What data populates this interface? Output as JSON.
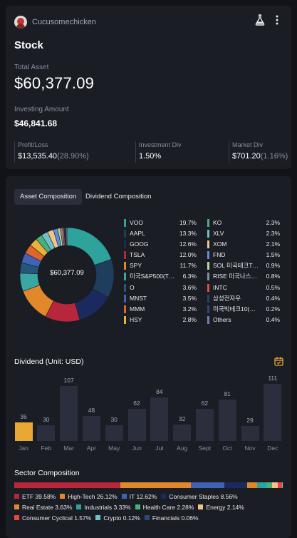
{
  "header": {
    "username": "Cucusomechicken",
    "title": "Stock"
  },
  "summary": {
    "total_asset_label": "Total Asset",
    "total_asset": "$60,377.09",
    "investing_label": "Investing Amount",
    "investing": "$46,841.68",
    "profit_label": "Profit/Loss",
    "profit_value": "$13,535.40",
    "profit_pct": "(28.90%)",
    "inv_div_label": "Investment Div",
    "inv_div_value": "1.50%",
    "mkt_div_label": "Market Div",
    "mkt_div_value": "$701.20",
    "mkt_div_pct": "(1.16%)"
  },
  "tabs": {
    "asset": "Asset Composition",
    "dividend": "Dividend Composition"
  },
  "donut": {
    "center": "$60,377.09"
  },
  "holdings_left": [
    {
      "name": "VOO",
      "pct": "19.7%",
      "color": "#2ea39b",
      "value": 19.7
    },
    {
      "name": "AAPL",
      "pct": "13.3%",
      "color": "#1f3d5c",
      "value": 13.3
    },
    {
      "name": "GOOG",
      "pct": "12.6%",
      "color": "#1b2a5e",
      "value": 12.6
    },
    {
      "name": "TSLA",
      "pct": "12.0%",
      "color": "#b7263b",
      "value": 12.0
    },
    {
      "name": "SPY",
      "pct": "11.7%",
      "color": "#e0882a",
      "value": 11.7
    },
    {
      "name": "미국S&P500(T…",
      "pct": "6.3%",
      "color": "#3aa6a3",
      "value": 6.3
    },
    {
      "name": "O",
      "pct": "3.6%",
      "color": "#26567a",
      "value": 3.6
    },
    {
      "name": "MNST",
      "pct": "3.5%",
      "color": "#3e63b5",
      "value": 3.5
    },
    {
      "name": "MMM",
      "pct": "3.2%",
      "color": "#e0642e",
      "value": 3.2
    },
    {
      "name": "HSY",
      "pct": "2.8%",
      "color": "#e9b33b",
      "value": 2.8
    }
  ],
  "holdings_right": [
    {
      "name": "KO",
      "pct": "2.3%",
      "color": "#48b07a",
      "value": 2.3
    },
    {
      "name": "XLV",
      "pct": "2.3%",
      "color": "#6fc1c9",
      "value": 2.3
    },
    {
      "name": "XOM",
      "pct": "2.1%",
      "color": "#f2c38b",
      "value": 2.1
    },
    {
      "name": "FND",
      "pct": "1.5%",
      "color": "#5b8fd6",
      "value": 1.5
    },
    {
      "name": "SOL 미국테크T…",
      "pct": "0.9%",
      "color": "#b9d99b",
      "value": 0.9
    },
    {
      "name": "RISE 미국나스…",
      "pct": "0.8%",
      "color": "#8a8d99",
      "value": 0.8
    },
    {
      "name": "INTC",
      "pct": "0.5%",
      "color": "#e34b3c",
      "value": 0.5
    },
    {
      "name": "삼성전자우",
      "pct": "0.4%",
      "color": "#2b3f63",
      "value": 0.4
    },
    {
      "name": "미국빅테크10(…",
      "pct": "0.2%",
      "color": "#2c4a73",
      "value": 0.2
    },
    {
      "name": "Others",
      "pct": "0.4%",
      "color": "#6b7fb8",
      "value": 0.4
    }
  ],
  "dividend": {
    "title": "Dividend (Unit: USD)",
    "months": [
      "Jan",
      "Feb",
      "Mar",
      "Apr",
      "May",
      "Jun",
      "Jul",
      "Aug",
      "Sept",
      "Oct",
      "Nov",
      "Dec"
    ],
    "values": [
      36,
      30,
      107,
      48,
      30,
      62,
      84,
      32,
      62,
      81,
      29,
      111
    ],
    "active_index": 0,
    "active_color": "#e9a833"
  },
  "sector": {
    "title": "Sector Composition",
    "items": [
      {
        "label": "ETF 39.58%",
        "value": 39.58,
        "color": "#b7263b"
      },
      {
        "label": "High-Tech 26.12%",
        "value": 26.12,
        "color": "#e0882a"
      },
      {
        "label": "IT 12.62%",
        "value": 12.62,
        "color": "#3e63b5"
      },
      {
        "label": "Consumer Staples 8.56%",
        "value": 8.56,
        "color": "#1b2a5e"
      },
      {
        "label": "Real Estate 3.63%",
        "value": 3.63,
        "color": "#e0882a"
      },
      {
        "label": "Industrials 3.33%",
        "value": 3.33,
        "color": "#2ea39b"
      },
      {
        "label": "Health Care 2.28%",
        "value": 2.28,
        "color": "#48b07a"
      },
      {
        "label": "Energy 2.14%",
        "value": 2.14,
        "color": "#f2c38b"
      },
      {
        "label": "Consumer Cyclical 1.57%",
        "value": 1.57,
        "color": "#e34b3c"
      },
      {
        "label": "Crypto 0.12%",
        "value": 0.12,
        "color": "#6fc1c9"
      },
      {
        "label": "Financials 0.06%",
        "value": 0.06,
        "color": "#2c4a73"
      }
    ]
  }
}
